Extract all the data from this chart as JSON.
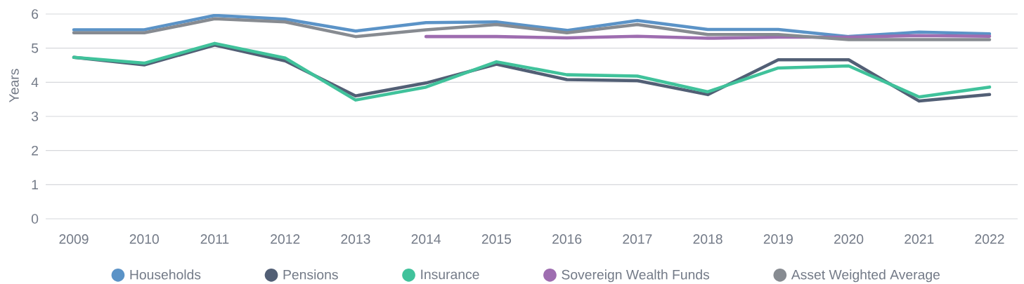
{
  "chart_data": {
    "type": "line",
    "ylabel": "Years",
    "categories": [
      "2009",
      "2010",
      "2011",
      "2012",
      "2013",
      "2014",
      "2015",
      "2016",
      "2017",
      "2018",
      "2019",
      "2020",
      "2021",
      "2022"
    ],
    "ylim": [
      0,
      6
    ],
    "yticks": [
      0,
      1,
      2,
      3,
      4,
      5,
      6
    ],
    "grid": "y",
    "legend": "bottom",
    "line_style": "solid",
    "series": [
      {
        "name": "Households",
        "color": "#5b93c7",
        "values": [
          5.54,
          5.54,
          5.96,
          5.85,
          5.5,
          5.75,
          5.77,
          5.52,
          5.81,
          5.55,
          5.55,
          5.34,
          5.47,
          5.42
        ]
      },
      {
        "name": "Pensions",
        "color": "#525f75",
        "values": [
          4.73,
          4.51,
          5.09,
          4.63,
          3.6,
          3.98,
          4.53,
          4.08,
          4.05,
          3.64,
          4.66,
          4.66,
          3.45,
          3.64
        ]
      },
      {
        "name": "Insurance",
        "color": "#40c29b",
        "values": [
          4.73,
          4.56,
          5.14,
          4.71,
          3.48,
          3.86,
          4.6,
          4.22,
          4.18,
          3.72,
          4.42,
          4.48,
          3.57,
          3.86
        ]
      },
      {
        "name": "Sovereign Wealth Funds",
        "color": "#9e6db0",
        "values": [
          null,
          null,
          null,
          null,
          null,
          5.34,
          5.34,
          5.3,
          5.35,
          5.29,
          5.32,
          5.32,
          5.37,
          5.35
        ]
      },
      {
        "name": "Asset Weighted Average",
        "color": "#878b91",
        "values": [
          5.45,
          5.45,
          5.86,
          5.77,
          5.34,
          5.54,
          5.69,
          5.45,
          5.69,
          5.4,
          5.4,
          5.25,
          5.25,
          5.25
        ]
      }
    ]
  }
}
